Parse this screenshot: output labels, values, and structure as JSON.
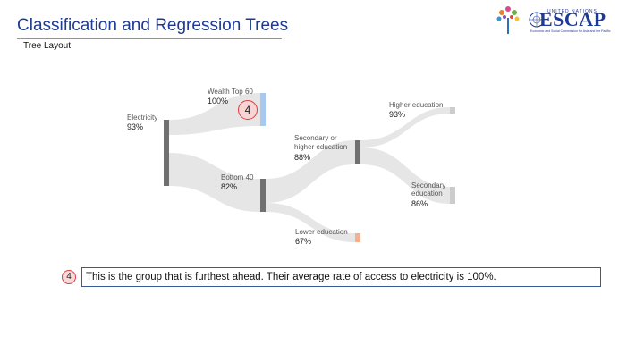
{
  "slide": {
    "title": "Classification and Regression Trees",
    "subtitle": "Tree Layout"
  },
  "logo": {
    "name": "ESCAP",
    "un_text": "UNITED NATIONS",
    "commission_text": "Economic and Social Commission for Asia and the Pacific"
  },
  "tree": {
    "nodes": [
      {
        "id": "root",
        "label": "Electricity",
        "value": "93%",
        "color": "#707070"
      },
      {
        "id": "top60",
        "label": "Wealth Top 60",
        "value": "100%",
        "color": "#a8c8f0"
      },
      {
        "id": "bottom40",
        "label": "Bottom 40",
        "value": "82%",
        "color": "#707070"
      },
      {
        "id": "secondary_higher",
        "label_lines": [
          "Secondary or",
          "higher education"
        ],
        "value": "88%",
        "color": "#707070"
      },
      {
        "id": "lower_edu",
        "label": "Lower education",
        "value": "67%",
        "color": "#f4b090"
      },
      {
        "id": "higher_edu",
        "label": "Higher education",
        "value": "93%",
        "color": "#cccccc"
      },
      {
        "id": "secondary_edu",
        "label_lines": [
          "Secondary",
          "education"
        ],
        "value": "86%",
        "color": "#cccccc"
      }
    ],
    "link_color": "#e6e6e6"
  },
  "callout": {
    "number": "4",
    "text": "This is the group that is furthest ahead. Their average rate of access to electricity is 100%.",
    "circle_color": "#d94040"
  }
}
